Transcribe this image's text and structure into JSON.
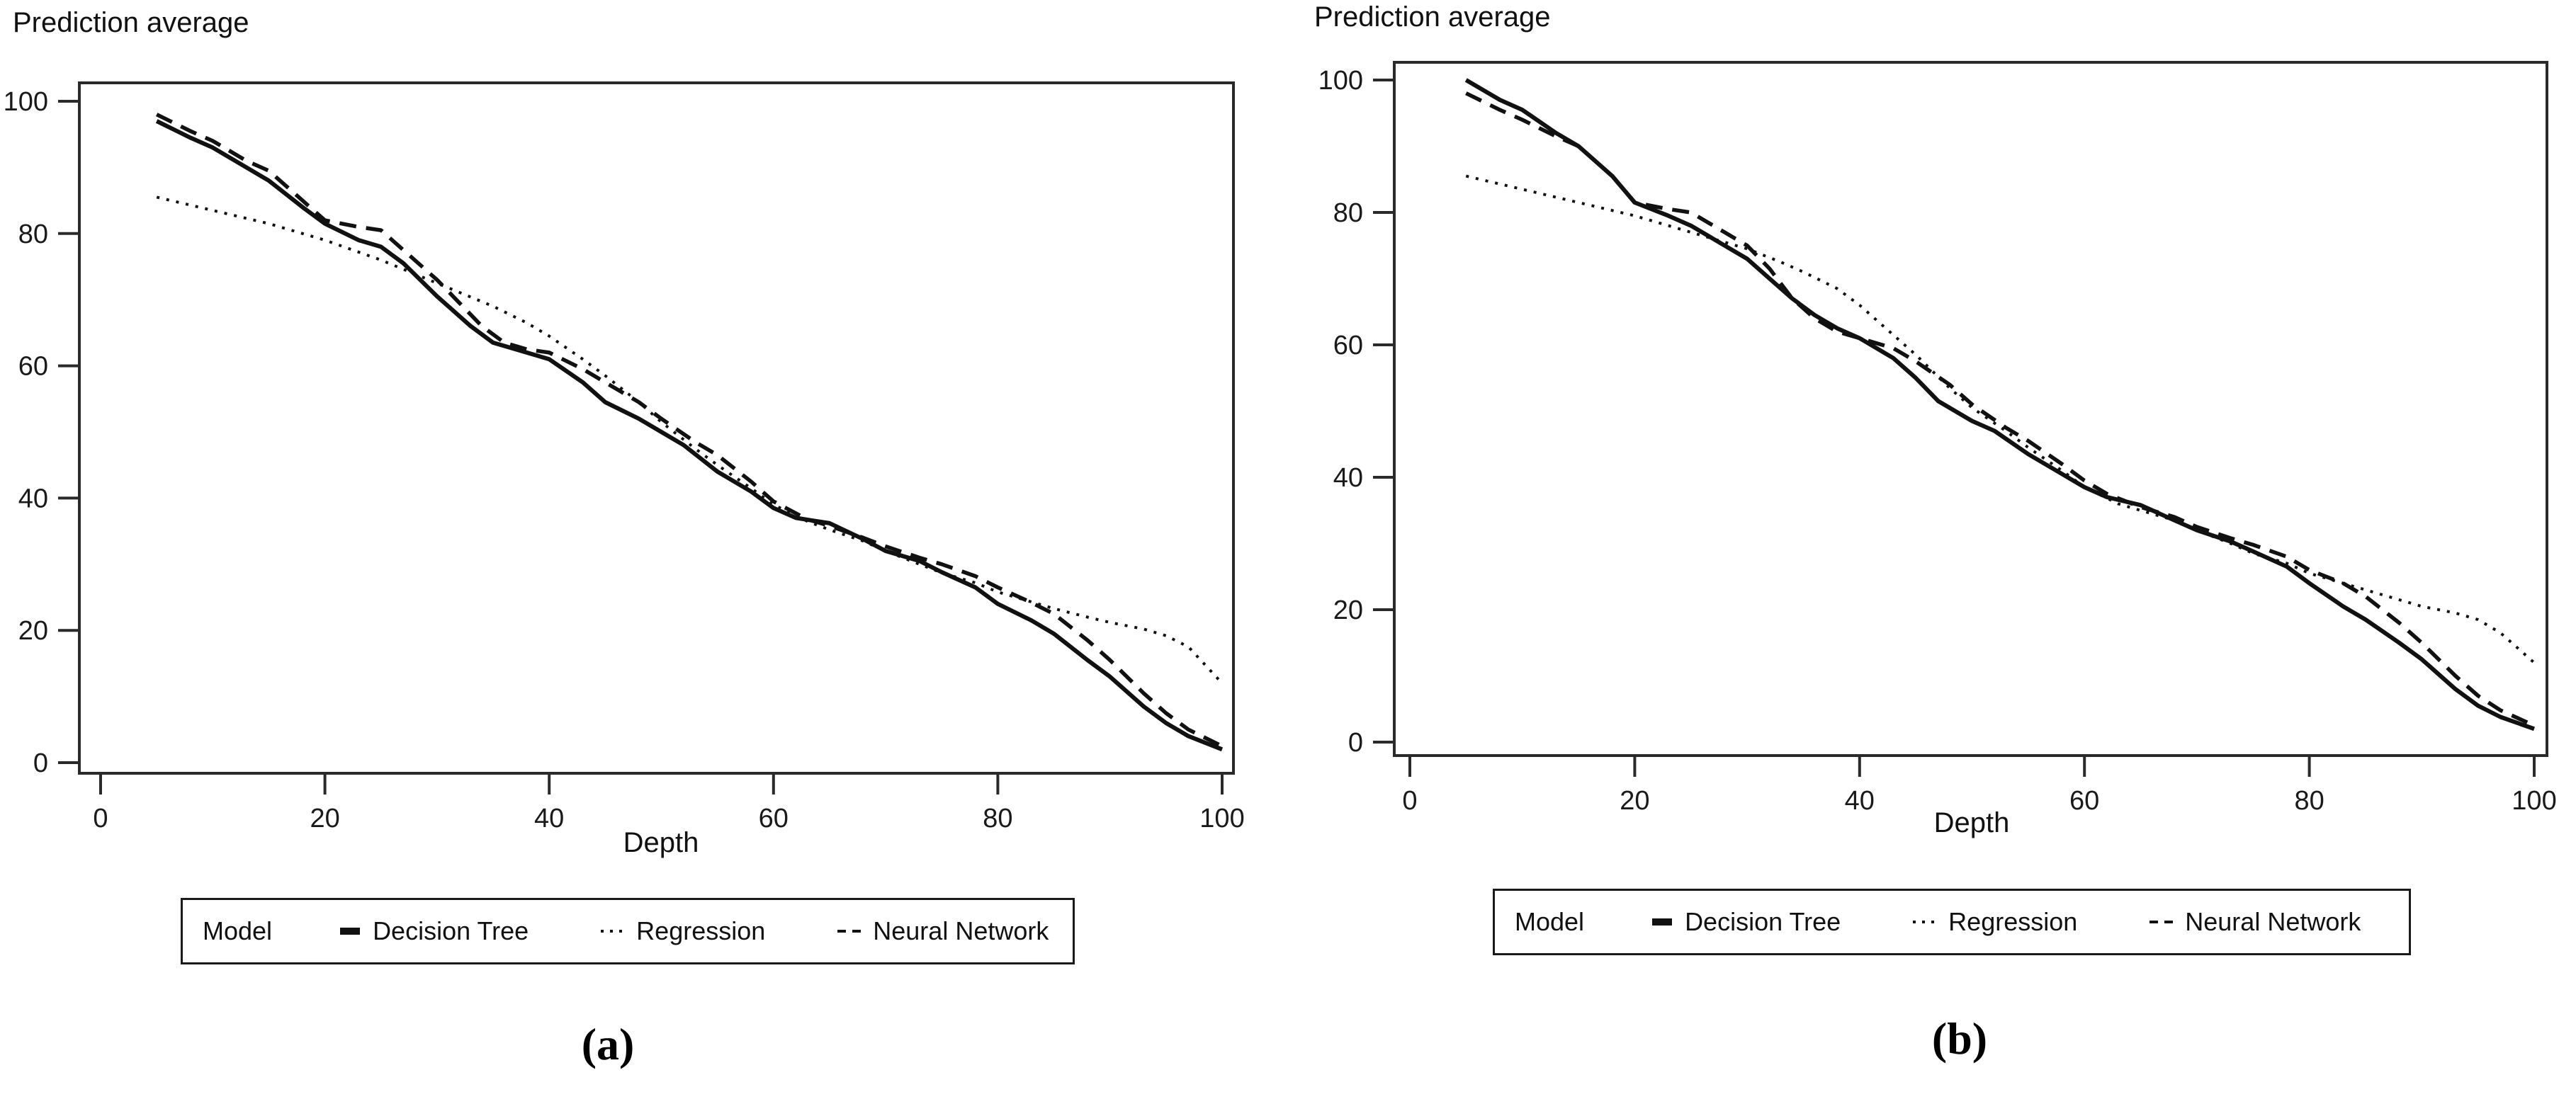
{
  "figure": {
    "captions": {
      "a": "(a)",
      "b": "(b)"
    }
  },
  "chart_data": [
    {
      "type": "line",
      "panel": "a",
      "title": "Prediction average",
      "xlabel": "Depth",
      "ylabel": "Prediction average",
      "xlim": [
        0,
        100
      ],
      "ylim": [
        0,
        100
      ],
      "xticks": [
        0,
        20,
        40,
        60,
        80,
        100
      ],
      "yticks": [
        0,
        20,
        40,
        60,
        80,
        100
      ],
      "grid": false,
      "legend_position": "bottom",
      "legend_title": "Model",
      "line_color": "#111111",
      "series": [
        {
          "name": "Decision Tree",
          "style": "solid",
          "points": [
            [
              5,
              97
            ],
            [
              8,
              94.5
            ],
            [
              10,
              93
            ],
            [
              13,
              90
            ],
            [
              15,
              88
            ],
            [
              18,
              84
            ],
            [
              20,
              81.5
            ],
            [
              23,
              79
            ],
            [
              25,
              78
            ],
            [
              27,
              75.5
            ],
            [
              30,
              70.5
            ],
            [
              33,
              66
            ],
            [
              35,
              63.5
            ],
            [
              38,
              62
            ],
            [
              40,
              61
            ],
            [
              43,
              57.5
            ],
            [
              45,
              54.5
            ],
            [
              48,
              52
            ],
            [
              50,
              50
            ],
            [
              52,
              48
            ],
            [
              55,
              44
            ],
            [
              58,
              41
            ],
            [
              60,
              38.5
            ],
            [
              62,
              37
            ],
            [
              65,
              36.2
            ],
            [
              68,
              33.8
            ],
            [
              70,
              32
            ],
            [
              73,
              30.5
            ],
            [
              75,
              28.8
            ],
            [
              78,
              26.5
            ],
            [
              80,
              24
            ],
            [
              83,
              21.5
            ],
            [
              85,
              19.5
            ],
            [
              88,
              15.5
            ],
            [
              90,
              13
            ],
            [
              93,
              8.5
            ],
            [
              95,
              6
            ],
            [
              97,
              4
            ],
            [
              100,
              2
            ]
          ]
        },
        {
          "name": "Regression",
          "style": "dotted",
          "points": [
            [
              5,
              85.5
            ],
            [
              10,
              83.5
            ],
            [
              15,
              81.5
            ],
            [
              20,
              79
            ],
            [
              25,
              76
            ],
            [
              30,
              72.5
            ],
            [
              35,
              69
            ],
            [
              38,
              66.5
            ],
            [
              40,
              64.5
            ],
            [
              43,
              61
            ],
            [
              45,
              58.5
            ],
            [
              48,
              54.5
            ],
            [
              50,
              51.5
            ],
            [
              53,
              47.5
            ],
            [
              55,
              45
            ],
            [
              58,
              41.5
            ],
            [
              60,
              39
            ],
            [
              63,
              36.5
            ],
            [
              65,
              35.2
            ],
            [
              68,
              33.5
            ],
            [
              70,
              32
            ],
            [
              73,
              30
            ],
            [
              75,
              28.7
            ],
            [
              78,
              27.2
            ],
            [
              80,
              25.8
            ],
            [
              83,
              24.3
            ],
            [
              85,
              23.3
            ],
            [
              88,
              22
            ],
            [
              90,
              21.2
            ],
            [
              93,
              20.2
            ],
            [
              95,
              19.2
            ],
            [
              97,
              17.5
            ],
            [
              100,
              12
            ]
          ]
        },
        {
          "name": "Neural Network",
          "style": "dashed",
          "points": [
            [
              5,
              98
            ],
            [
              8,
              95.5
            ],
            [
              10,
              94
            ],
            [
              13,
              91
            ],
            [
              15,
              89.5
            ],
            [
              18,
              85
            ],
            [
              20,
              82
            ],
            [
              23,
              81
            ],
            [
              25,
              80.5
            ],
            [
              27,
              77.5
            ],
            [
              30,
              73
            ],
            [
              32,
              69.5
            ],
            [
              34,
              66
            ],
            [
              36,
              63.5
            ],
            [
              38,
              62.5
            ],
            [
              40,
              62
            ],
            [
              43,
              59.5
            ],
            [
              45,
              57.5
            ],
            [
              48,
              54.5
            ],
            [
              50,
              52
            ],
            [
              53,
              48.5
            ],
            [
              55,
              46.5
            ],
            [
              58,
              42.5
            ],
            [
              60,
              39.5
            ],
            [
              63,
              36.8
            ],
            [
              65,
              35.8
            ],
            [
              68,
              34
            ],
            [
              70,
              32.7
            ],
            [
              73,
              31
            ],
            [
              75,
              30
            ],
            [
              78,
              28.2
            ],
            [
              80,
              26.5
            ],
            [
              83,
              24.2
            ],
            [
              85,
              22.5
            ],
            [
              88,
              18.5
            ],
            [
              90,
              15.5
            ],
            [
              93,
              10.5
            ],
            [
              95,
              7.5
            ],
            [
              97,
              5
            ],
            [
              100,
              2.5
            ]
          ]
        }
      ]
    },
    {
      "type": "line",
      "panel": "b",
      "title": "Prediction average",
      "xlabel": "Depth",
      "ylabel": "Prediction average",
      "xlim": [
        0,
        100
      ],
      "ylim": [
        0,
        100
      ],
      "xticks": [
        0,
        20,
        40,
        60,
        80,
        100
      ],
      "yticks": [
        0,
        20,
        40,
        60,
        80,
        100
      ],
      "grid": false,
      "legend_position": "bottom",
      "legend_title": "Model",
      "line_color": "#111111",
      "series": [
        {
          "name": "Decision Tree",
          "style": "solid",
          "points": [
            [
              5,
              100
            ],
            [
              8,
              97
            ],
            [
              10,
              95.5
            ],
            [
              13,
              92
            ],
            [
              15,
              90
            ],
            [
              18,
              85.5
            ],
            [
              20,
              81.5
            ],
            [
              23,
              79.5
            ],
            [
              25,
              78
            ],
            [
              27,
              76
            ],
            [
              30,
              73
            ],
            [
              32,
              70
            ],
            [
              34,
              67
            ],
            [
              36,
              64.5
            ],
            [
              38,
              62.5
            ],
            [
              40,
              61
            ],
            [
              43,
              58
            ],
            [
              45,
              55
            ],
            [
              47,
              51.5
            ],
            [
              50,
              48.5
            ],
            [
              52,
              47
            ],
            [
              55,
              43.5
            ],
            [
              58,
              40.5
            ],
            [
              60,
              38.5
            ],
            [
              62,
              37
            ],
            [
              65,
              35.8
            ],
            [
              68,
              33.5
            ],
            [
              70,
              32
            ],
            [
              73,
              30.3
            ],
            [
              75,
              28.8
            ],
            [
              78,
              26.5
            ],
            [
              80,
              24
            ],
            [
              83,
              20.5
            ],
            [
              85,
              18.5
            ],
            [
              88,
              15
            ],
            [
              90,
              12.5
            ],
            [
              93,
              8
            ],
            [
              95,
              5.5
            ],
            [
              97,
              3.8
            ],
            [
              100,
              2
            ]
          ]
        },
        {
          "name": "Regression",
          "style": "dotted",
          "points": [
            [
              5,
              85.5
            ],
            [
              10,
              83.5
            ],
            [
              15,
              81.5
            ],
            [
              20,
              79.5
            ],
            [
              25,
              77
            ],
            [
              30,
              74.5
            ],
            [
              33,
              72.5
            ],
            [
              35,
              71
            ],
            [
              38,
              68.5
            ],
            [
              40,
              66
            ],
            [
              43,
              61.5
            ],
            [
              45,
              58.5
            ],
            [
              48,
              53.5
            ],
            [
              50,
              50.5
            ],
            [
              53,
              47
            ],
            [
              55,
              44.5
            ],
            [
              58,
              41
            ],
            [
              60,
              38.5
            ],
            [
              63,
              36
            ],
            [
              65,
              35
            ],
            [
              68,
              33.5
            ],
            [
              70,
              32
            ],
            [
              73,
              30
            ],
            [
              75,
              28.5
            ],
            [
              78,
              27
            ],
            [
              80,
              25.5
            ],
            [
              83,
              24
            ],
            [
              85,
              23
            ],
            [
              88,
              21.5
            ],
            [
              90,
              20.5
            ],
            [
              93,
              19.5
            ],
            [
              95,
              18.5
            ],
            [
              97,
              16.5
            ],
            [
              100,
              12
            ]
          ]
        },
        {
          "name": "Neural Network",
          "style": "dashed",
          "points": [
            [
              5,
              98
            ],
            [
              8,
              95.5
            ],
            [
              10,
              94
            ],
            [
              13,
              91.5
            ],
            [
              15,
              90
            ],
            [
              18,
              85.5
            ],
            [
              20,
              81.5
            ],
            [
              23,
              80.5
            ],
            [
              25,
              80
            ],
            [
              27,
              78
            ],
            [
              30,
              75
            ],
            [
              32,
              71.5
            ],
            [
              34,
              67
            ],
            [
              36,
              64
            ],
            [
              38,
              62
            ],
            [
              40,
              61
            ],
            [
              43,
              59.5
            ],
            [
              45,
              57.5
            ],
            [
              48,
              54
            ],
            [
              50,
              51
            ],
            [
              53,
              47.5
            ],
            [
              55,
              45.5
            ],
            [
              58,
              42
            ],
            [
              60,
              39.5
            ],
            [
              62,
              37.5
            ],
            [
              65,
              35.5
            ],
            [
              68,
              34
            ],
            [
              70,
              32.5
            ],
            [
              73,
              30.8
            ],
            [
              75,
              29.8
            ],
            [
              78,
              28
            ],
            [
              80,
              26
            ],
            [
              83,
              24
            ],
            [
              85,
              22
            ],
            [
              88,
              18
            ],
            [
              90,
              15
            ],
            [
              93,
              10
            ],
            [
              95,
              7
            ],
            [
              97,
              4.8
            ],
            [
              100,
              2.5
            ]
          ]
        }
      ]
    }
  ]
}
